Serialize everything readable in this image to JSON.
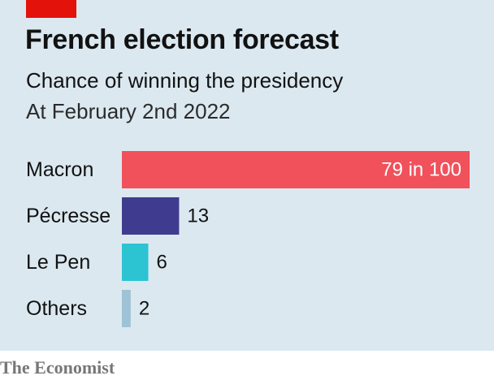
{
  "header": {
    "title": "French election forecast",
    "subtitle": "Chance of winning the presidency",
    "date": "At February 2nd 2022"
  },
  "footer": {
    "source": "The Economist"
  },
  "colors": {
    "panel": "#dbe8f0",
    "tag": "#e3120b"
  },
  "chart_data": {
    "type": "bar",
    "orientation": "horizontal",
    "categories": [
      "Macron",
      "Pécresse",
      "Le Pen",
      "Others"
    ],
    "values": [
      79,
      13,
      6,
      2
    ],
    "value_labels": [
      "79 in 100",
      "13",
      "6",
      "2"
    ],
    "colors": [
      "#f0515b",
      "#3f3c8f",
      "#2cc3d3",
      "#9ec3d6"
    ],
    "label_inside": [
      true,
      false,
      false,
      false
    ],
    "xlim": [
      0,
      79
    ],
    "title": "French election forecast",
    "subtitle": "Chance of winning the presidency",
    "xlabel": "",
    "ylabel": "",
    "grid": false,
    "legend": false
  }
}
